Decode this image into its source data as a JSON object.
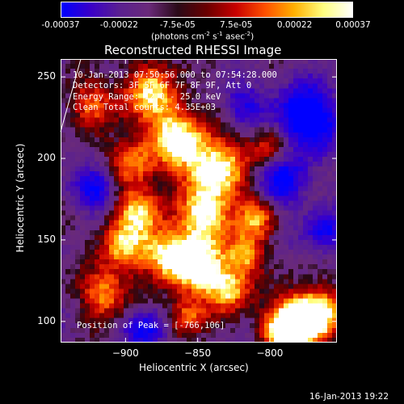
{
  "colorbar": {
    "ticks": [
      "-0.00037",
      "-0.00022",
      "-7.5e-05",
      "7.5e-05",
      "0.00022",
      "0.00037"
    ],
    "unit_main": "(photons cm",
    "unit_sup1": "-2",
    "unit_mid": " s",
    "unit_sup2": "-1",
    "unit_end": " asec",
    "unit_sup3": "-2",
    "unit_close": ")",
    "stops": [
      "#0000ff",
      "#3a00c8",
      "#5a2090",
      "#6a2a7a",
      "#2a0a18",
      "#6a0000",
      "#c80000",
      "#ff5000",
      "#ffb000",
      "#ffff80",
      "#ffffff"
    ]
  },
  "image": {
    "title": "Reconstructed RHESSI Image",
    "info_lines": [
      "10-Jan-2013 07:50:56.000 to 07:54:28.000",
      "Detectors: 3F 5F 6F 7F 8F 9F, Att 0",
      "Energy Range: 12.0 - 25.0 keV",
      "Clean    Total counts: 4.35E+03"
    ],
    "peak_label": "Position of Peak = [-766,106]",
    "xlabel": "Heliocentric X (arcsec)",
    "ylabel": "Heliocentric Y (arcsec)",
    "xticks": [
      {
        "value": -900,
        "label": "−900"
      },
      {
        "value": -850,
        "label": "−850"
      },
      {
        "value": -800,
        "label": "−800"
      }
    ],
    "yticks": [
      {
        "value": 100,
        "label": "100"
      },
      {
        "value": 150,
        "label": "150"
      },
      {
        "value": 200,
        "label": "200"
      },
      {
        "value": 250,
        "label": "250"
      }
    ],
    "xrange": [
      -945,
      -777
    ],
    "yrange": [
      87,
      261
    ],
    "peak_position": [
      -766,
      106
    ]
  },
  "footer": {
    "timestamp": "16-Jan-2013 19:22"
  }
}
